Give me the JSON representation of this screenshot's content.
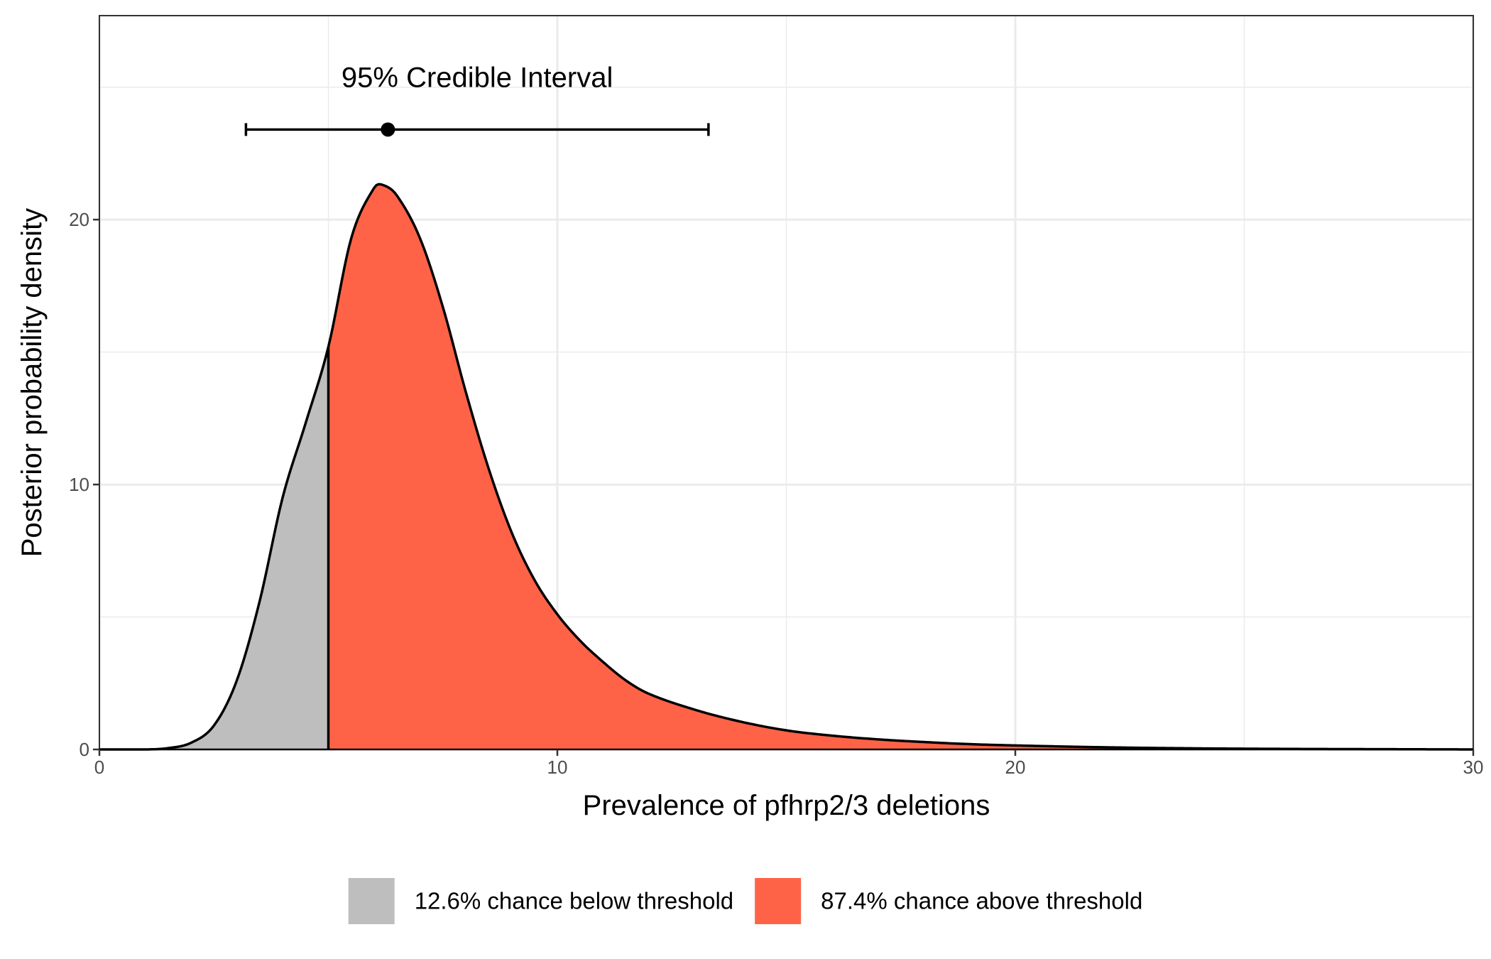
{
  "chart_data": {
    "type": "area",
    "title": "",
    "xlabel": "Prevalence of pfhrp2/3 deletions",
    "ylabel": "Posterior probability density",
    "xlim": [
      0,
      30
    ],
    "ylim": [
      0,
      27.7
    ],
    "x_ticks": [
      0,
      10,
      20,
      30
    ],
    "y_ticks": [
      0,
      10,
      20
    ],
    "grid": true,
    "threshold": 5,
    "density": {
      "x": [
        0,
        1,
        1.5,
        2,
        2.5,
        3,
        3.5,
        4,
        4.5,
        5,
        5.5,
        6,
        6.2,
        6.5,
        7,
        7.5,
        8,
        8.5,
        9,
        9.5,
        10,
        10.5,
        11,
        11.5,
        12,
        13,
        14,
        15,
        16,
        17,
        18,
        19,
        20,
        22,
        24,
        26,
        28,
        30
      ],
      "y": [
        0,
        0,
        0.05,
        0.25,
        0.9,
        2.6,
        5.6,
        9.5,
        12.3,
        15.2,
        19.3,
        21.2,
        21.3,
        20.9,
        19.3,
        16.7,
        13.5,
        10.6,
        8.2,
        6.4,
        5.1,
        4.1,
        3.3,
        2.6,
        2.1,
        1.5,
        1.05,
        0.72,
        0.52,
        0.38,
        0.28,
        0.2,
        0.15,
        0.08,
        0.04,
        0.02,
        0.01,
        0
      ]
    },
    "credible_interval": {
      "label": "95% Credible Interval",
      "lower": 3.2,
      "point": 6.3,
      "upper": 13.3,
      "y": 23.4
    },
    "legend": {
      "position": "bottom",
      "entries": [
        {
          "label": "12.6% chance below threshold",
          "color": "#bebebe"
        },
        {
          "label": "87.4% chance above threshold",
          "color": "#ff6347"
        }
      ]
    },
    "colors": {
      "below": "#bebebe",
      "above": "#ff6347",
      "line": "#000000",
      "grid": "#ebebeb",
      "panel_border": "#333333"
    }
  }
}
